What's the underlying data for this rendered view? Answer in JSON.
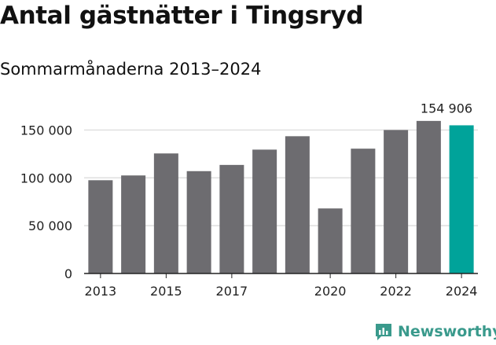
{
  "title": "Antal gästnätter i Tingsryd",
  "subtitle": "Sommarmånaderna 2013–2024",
  "brand": {
    "name": "Newsworthy",
    "icon": "newsworthy-logo-icon",
    "color": "#3a9a8c"
  },
  "colors": {
    "bar": "#6d6c70",
    "highlight": "#00a39a",
    "grid": "#d9d9d9",
    "axis": "#222222"
  },
  "chart_data": {
    "type": "bar",
    "title": "Antal gästnätter i Tingsryd",
    "subtitle": "Sommarmånaderna 2013–2024",
    "categories": [
      "2013",
      "2014",
      "2015",
      "2016",
      "2017",
      "2018",
      "2019",
      "2020",
      "2021",
      "2022",
      "2023",
      "2024"
    ],
    "values": [
      97500,
      102500,
      125500,
      107000,
      113500,
      129500,
      143500,
      68000,
      130500,
      150000,
      159500,
      154906
    ],
    "x_tick_labels": [
      "2013",
      "",
      "2015",
      "",
      "2017",
      "",
      "",
      "2020",
      "",
      "2022",
      "",
      "2024"
    ],
    "y_ticks": [
      0,
      50000,
      100000,
      150000
    ],
    "y_tick_labels": [
      "0",
      "50 000",
      "100 000",
      "150 000"
    ],
    "ylim": [
      0,
      175000
    ],
    "highlight_index": 11,
    "annotation": {
      "index": 11,
      "text": "154 906"
    },
    "grid": true,
    "xlabel": "",
    "ylabel": ""
  }
}
